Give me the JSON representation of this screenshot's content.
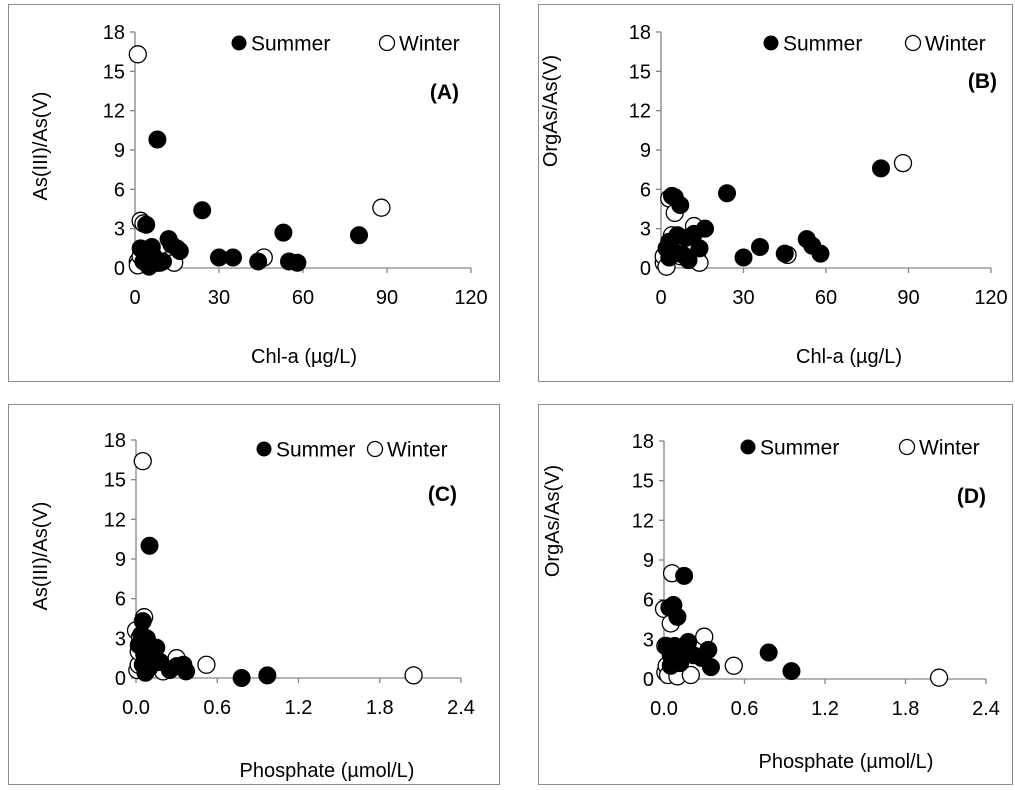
{
  "chart_data": [
    {
      "type": "scatter",
      "panel_label": "(A)",
      "xlabel": "Chl-a (µg/L)",
      "ylabel": "As(III)/As(V)",
      "xlim": [
        0,
        120
      ],
      "ylim": [
        0,
        18
      ],
      "xticks": [
        0,
        30,
        60,
        90,
        120
      ],
      "yticks": [
        0,
        3,
        6,
        9,
        12,
        15,
        18
      ],
      "grid": false,
      "legend": "top-right",
      "series": [
        {
          "name": "Summer",
          "marker": "filled-circle",
          "color": "#000000",
          "x": [
            2,
            3,
            4,
            4,
            5,
            6,
            7,
            8,
            9,
            10,
            12,
            13,
            15,
            16,
            24,
            30,
            35,
            44,
            53,
            55,
            58,
            80,
            4,
            6
          ],
          "y": [
            1.5,
            0.5,
            1.2,
            3.3,
            0.1,
            1.0,
            0.8,
            9.8,
            0.4,
            0.5,
            2.2,
            1.8,
            1.5,
            1.3,
            4.4,
            0.8,
            0.8,
            0.5,
            2.7,
            0.5,
            0.4,
            2.5,
            0.9,
            1.6
          ]
        },
        {
          "name": "Winter",
          "marker": "open-circle",
          "color": "#000000",
          "x": [
            1,
            2,
            1,
            1,
            2,
            3,
            5,
            6,
            7,
            8,
            12,
            14,
            46,
            88
          ],
          "y": [
            16.3,
            3.6,
            0.5,
            0.2,
            0.9,
            3.4,
            1.3,
            1.1,
            0.7,
            0.4,
            0.6,
            0.4,
            0.8,
            4.6
          ]
        }
      ]
    },
    {
      "type": "scatter",
      "panel_label": "(B)",
      "xlabel": "Chl-a (µg/L)",
      "ylabel": "OrgAs/As(V)",
      "xlim": [
        0,
        120
      ],
      "ylim": [
        0,
        18
      ],
      "xticks": [
        0,
        30,
        60,
        90,
        120
      ],
      "yticks": [
        0,
        3,
        6,
        9,
        12,
        15,
        18
      ],
      "grid": false,
      "legend": "top-right",
      "series": [
        {
          "name": "Summer",
          "marker": "filled-circle",
          "color": "#000000",
          "x": [
            2,
            3,
            4,
            5,
            6,
            7,
            8,
            9,
            10,
            12,
            14,
            16,
            24,
            30,
            36,
            45,
            53,
            55,
            58,
            80,
            3,
            5
          ],
          "y": [
            1.5,
            2.0,
            5.5,
            5.4,
            2.5,
            4.8,
            1.0,
            2.3,
            0.6,
            2.6,
            1.5,
            3.0,
            5.7,
            0.8,
            1.6,
            1.1,
            2.2,
            1.7,
            1.1,
            7.6,
            0.8,
            1.2
          ]
        },
        {
          "name": "Winter",
          "marker": "open-circle",
          "color": "#000000",
          "x": [
            1,
            1,
            2,
            3,
            4,
            5,
            6,
            7,
            12,
            13,
            14,
            46,
            88
          ],
          "y": [
            0.4,
            0.9,
            0.1,
            5.3,
            2.5,
            4.2,
            2.0,
            0.9,
            3.2,
            1.0,
            0.4,
            1.0,
            8.0
          ]
        }
      ]
    },
    {
      "type": "scatter",
      "panel_label": "(C)",
      "xlabel": "Phosphate (µmol/L)",
      "ylabel": "As(III)/As(V)",
      "xlim": [
        0,
        2.4
      ],
      "ylim": [
        0,
        18
      ],
      "xticks": [
        0.0,
        0.6,
        1.2,
        1.8,
        2.4
      ],
      "yticks": [
        0,
        3,
        6,
        9,
        12,
        15,
        18
      ],
      "grid": false,
      "legend": "top-right",
      "series": [
        {
          "name": "Summer",
          "marker": "filled-circle",
          "color": "#000000",
          "x": [
            0.02,
            0.04,
            0.05,
            0.06,
            0.07,
            0.08,
            0.1,
            0.12,
            0.15,
            0.18,
            0.25,
            0.3,
            0.35,
            0.37,
            0.78,
            0.97,
            0.05,
            0.1
          ],
          "y": [
            2.5,
            3.3,
            4.3,
            1.8,
            0.4,
            3.0,
            10.0,
            1.6,
            2.3,
            1.2,
            0.6,
            0.9,
            1.0,
            0.5,
            0.0,
            0.2,
            1.0,
            0.8
          ]
        },
        {
          "name": "Winter",
          "marker": "open-circle",
          "color": "#000000",
          "x": [
            0.0,
            0.01,
            0.02,
            0.03,
            0.05,
            0.06,
            0.07,
            0.1,
            0.2,
            0.3,
            0.52,
            2.05,
            0.02
          ],
          "y": [
            3.6,
            0.6,
            1.0,
            3.1,
            16.4,
            4.6,
            0.9,
            2.5,
            0.5,
            1.5,
            1.0,
            0.2,
            2.0
          ]
        }
      ]
    },
    {
      "type": "scatter",
      "panel_label": "(D)",
      "xlabel": "Phosphate (µmol/L)",
      "ylabel": "OrgAs/As(V)",
      "xlim": [
        0,
        2.4
      ],
      "ylim": [
        0,
        18
      ],
      "xticks": [
        0.0,
        0.6,
        1.2,
        1.8,
        2.4
      ],
      "yticks": [
        0,
        3,
        6,
        9,
        12,
        15,
        18
      ],
      "grid": false,
      "legend": "top-right",
      "series": [
        {
          "name": "Summer",
          "marker": "filled-circle",
          "color": "#000000",
          "x": [
            0.02,
            0.04,
            0.05,
            0.07,
            0.08,
            0.1,
            0.12,
            0.15,
            0.18,
            0.22,
            0.28,
            0.33,
            0.35,
            0.78,
            0.95,
            0.05,
            0.12
          ],
          "y": [
            2.5,
            5.4,
            1.8,
            5.6,
            2.5,
            4.7,
            1.2,
            7.8,
            2.8,
            1.8,
            1.6,
            2.2,
            0.9,
            2.0,
            0.6,
            1.0,
            2.0
          ]
        },
        {
          "name": "Winter",
          "marker": "open-circle",
          "color": "#000000",
          "x": [
            0.0,
            0.01,
            0.02,
            0.03,
            0.05,
            0.06,
            0.1,
            0.2,
            0.3,
            0.52,
            2.05,
            0.01
          ],
          "y": [
            5.3,
            0.5,
            1.0,
            0.3,
            4.2,
            8.0,
            0.2,
            0.3,
            3.2,
            1.0,
            0.1,
            2.5
          ]
        }
      ]
    }
  ]
}
